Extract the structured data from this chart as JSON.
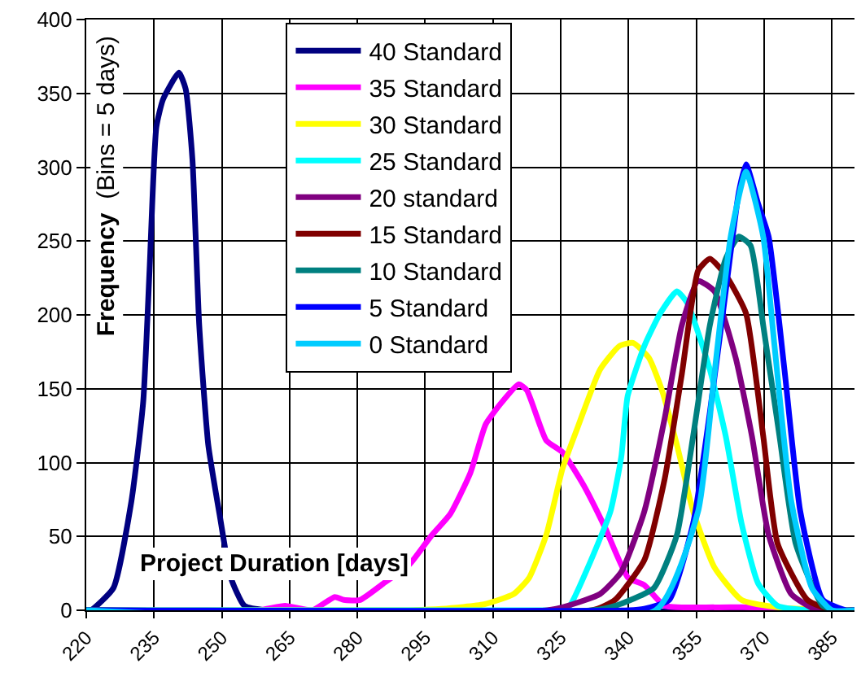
{
  "chart_data": {
    "type": "line",
    "xlabel": "Project Duration [days]",
    "ylabel": "Frequency  (Bins = 5 days)",
    "xlim": [
      220,
      390
    ],
    "xticks": [
      220,
      235,
      250,
      265,
      280,
      295,
      310,
      325,
      340,
      355,
      370,
      385
    ],
    "ylim": [
      0,
      400
    ],
    "yticks": [
      0,
      50,
      100,
      150,
      200,
      250,
      300,
      350,
      400
    ],
    "grid": true,
    "legend": "top",
    "marker": "none",
    "line_style": "solid",
    "series": [
      {
        "name": "40 Standard",
        "color": "#000080",
        "x": [
          220,
          221,
          226,
          230,
          232.6,
          234,
          235.5,
          237,
          240.5,
          242,
          243.5,
          245,
          247,
          249.6,
          252,
          255,
          260,
          390
        ],
        "values": [
          0,
          0,
          15,
          74,
          141,
          230,
          327,
          346,
          364,
          353,
          305,
          193,
          112,
          63,
          22,
          3,
          0,
          0
        ]
      },
      {
        "name": "35 Standard",
        "color": "#ff00ff",
        "x": [
          220,
          258,
          264,
          270,
          275,
          277,
          280.6,
          285.7,
          291.5,
          296.5,
          300.5,
          305,
          308.4,
          312,
          315.7,
          317.5,
          321.8,
          325.4,
          330,
          334.8,
          339.9,
          343.5,
          348,
          359,
          367,
          380,
          390
        ],
        "values": [
          0,
          0,
          3,
          0,
          9,
          7,
          7,
          18,
          31,
          51,
          65,
          93,
          126,
          141,
          153,
          149,
          115,
          107,
          85,
          56,
          22,
          17,
          3,
          2,
          2,
          0,
          0
        ]
      },
      {
        "name": "30 Standard",
        "color": "#ffff00",
        "x": [
          220,
          290,
          298.7,
          308,
          314.6,
          318,
          321.8,
          325.4,
          329,
          333.7,
          338,
          341,
          344.5,
          347.4,
          350.7,
          354.3,
          359,
          365,
          373,
          385,
          390
        ],
        "values": [
          0,
          0,
          1,
          4,
          11,
          22,
          51,
          96,
          126,
          163,
          179,
          181,
          171,
          149,
          112,
          67,
          29,
          7,
          2,
          0,
          0
        ]
      },
      {
        "name": "25 Standard",
        "color": "#00ffff",
        "x": [
          220,
          322,
          326.5,
          331,
          336,
          338.4,
          339.8,
          343.5,
          347,
          350.7,
          353,
          358,
          361.5,
          365,
          368.7,
          373,
          380,
          390
        ],
        "values": [
          0,
          0,
          1,
          29,
          67,
          104,
          145,
          179,
          201,
          216,
          208,
          163,
          118,
          59,
          18,
          3,
          0,
          0
        ]
      },
      {
        "name": "20 standard",
        "color": "#800080",
        "x": [
          220,
          322,
          326.5,
          333.7,
          338.4,
          343.5,
          348,
          351.8,
          355.4,
          359,
          363.7,
          367.3,
          371,
          376,
          381.7,
          390
        ],
        "values": [
          0,
          0,
          3,
          11,
          26,
          67,
          130,
          193,
          223,
          216,
          171,
          118,
          51,
          11,
          0,
          0
        ]
      },
      {
        "name": "15 Standard",
        "color": "#800000",
        "x": [
          220,
          332,
          337,
          343.5,
          348,
          351.8,
          355.4,
          358,
          361.5,
          366,
          369.8,
          373,
          379.6,
          385,
          390
        ],
        "values": [
          0,
          0,
          7,
          34,
          89,
          160,
          230,
          238,
          227,
          201,
          118,
          45,
          7,
          0,
          0
        ]
      },
      {
        "name": "10 Standard",
        "color": "#008080",
        "x": [
          220,
          332,
          337,
          345.6,
          350.7,
          354.3,
          358,
          361.5,
          364.4,
          367,
          369.8,
          373.4,
          377,
          383,
          387,
          390
        ],
        "values": [
          0,
          0,
          3,
          15,
          51,
          118,
          193,
          238,
          253,
          247,
          193,
          118,
          45,
          3,
          0,
          0
        ]
      },
      {
        "name": "5 Standard",
        "color": "#0000ff",
        "x": [
          220,
          340,
          343.5,
          349,
          354.3,
          358,
          361.5,
          364.4,
          366,
          368.7,
          371,
          374.5,
          378,
          383,
          388,
          390
        ],
        "values": [
          0,
          0,
          1,
          7,
          59,
          134,
          216,
          283,
          302,
          275,
          253,
          163,
          67,
          7,
          0,
          0
        ]
      },
      {
        "name": "0 Standard",
        "color": "#00ccff",
        "x": [
          220,
          346,
          355.4,
          359,
          362.6,
          366,
          369.8,
          372.3,
          376,
          380.6,
          385,
          390
        ],
        "values": [
          0,
          0,
          67,
          160,
          253,
          297,
          253,
          179,
          74,
          15,
          0,
          0
        ]
      }
    ]
  }
}
